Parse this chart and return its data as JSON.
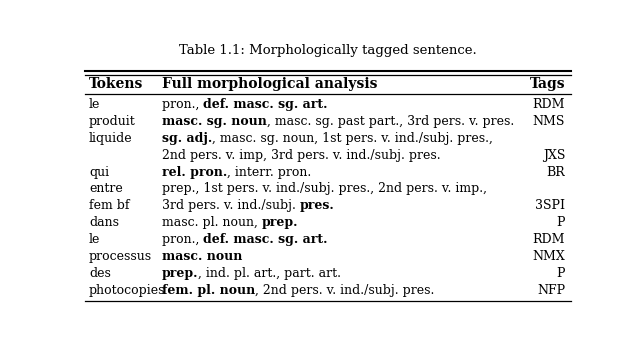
{
  "title": "Table 1.1: Morphologically tagged sentence.",
  "col_headers": [
    "Tokens",
    "Full morphological analysis",
    "Tags"
  ],
  "rows": [
    {
      "token": "le",
      "analysis": [
        [
          "pron., ",
          false
        ],
        [
          "def. masc. sg. art.",
          true
        ]
      ],
      "tag": "RDM"
    },
    {
      "token": "produit",
      "analysis": [
        [
          "masc. sg. noun",
          true
        ],
        [
          ", masc. sg. past part., 3rd pers. v. pres.",
          false
        ]
      ],
      "tag": "NMS"
    },
    {
      "token": "liquide",
      "analysis": [
        [
          "sg. adj.",
          true
        ],
        [
          ", masc. sg. noun, 1st pers. v. ind./subj. pres.,",
          false
        ]
      ],
      "tag": ""
    },
    {
      "token": "",
      "analysis": [
        [
          "2nd pers. v. imp, 3rd pers. v. ind./subj. pres.",
          false
        ]
      ],
      "tag": "JXS"
    },
    {
      "token": "qui",
      "analysis": [
        [
          "rel. pron.",
          true
        ],
        [
          ", interr. pron.",
          false
        ]
      ],
      "tag": "BR"
    },
    {
      "token": "entre",
      "analysis": [
        [
          "prep., 1st pers. v. ind./subj. pres., 2nd pers. v. imp.,",
          false
        ]
      ],
      "tag": ""
    },
    {
      "token": "fem bf",
      "analysis": [
        [
          "3rd pers. v. ind./subj. ",
          false
        ],
        [
          "pres.",
          true
        ]
      ],
      "tag": "3SPI"
    },
    {
      "token": "dans",
      "analysis": [
        [
          "masc. pl. noun, ",
          false
        ],
        [
          "prep.",
          true
        ]
      ],
      "tag": "P"
    },
    {
      "token": "le",
      "analysis": [
        [
          "pron., ",
          false
        ],
        [
          "def. masc. sg. art.",
          true
        ]
      ],
      "tag": "RDM"
    },
    {
      "token": "processus",
      "analysis": [
        [
          "masc. noun",
          true
        ]
      ],
      "tag": "NMX"
    },
    {
      "token": "des",
      "analysis": [
        [
          "prep.",
          true
        ],
        [
          ", ind. pl. art., part. art.",
          false
        ]
      ],
      "tag": "P"
    },
    {
      "token": "photocopies",
      "analysis": [
        [
          "fem. pl. noun",
          true
        ],
        [
          ", 2nd pers. v. ind./subj. pres.",
          false
        ]
      ],
      "tag": "NFP"
    }
  ],
  "bg_color": "#ffffff",
  "text_color": "#000000",
  "font_size": 9.0,
  "header_font_size": 10.0,
  "title_font_size": 9.5
}
